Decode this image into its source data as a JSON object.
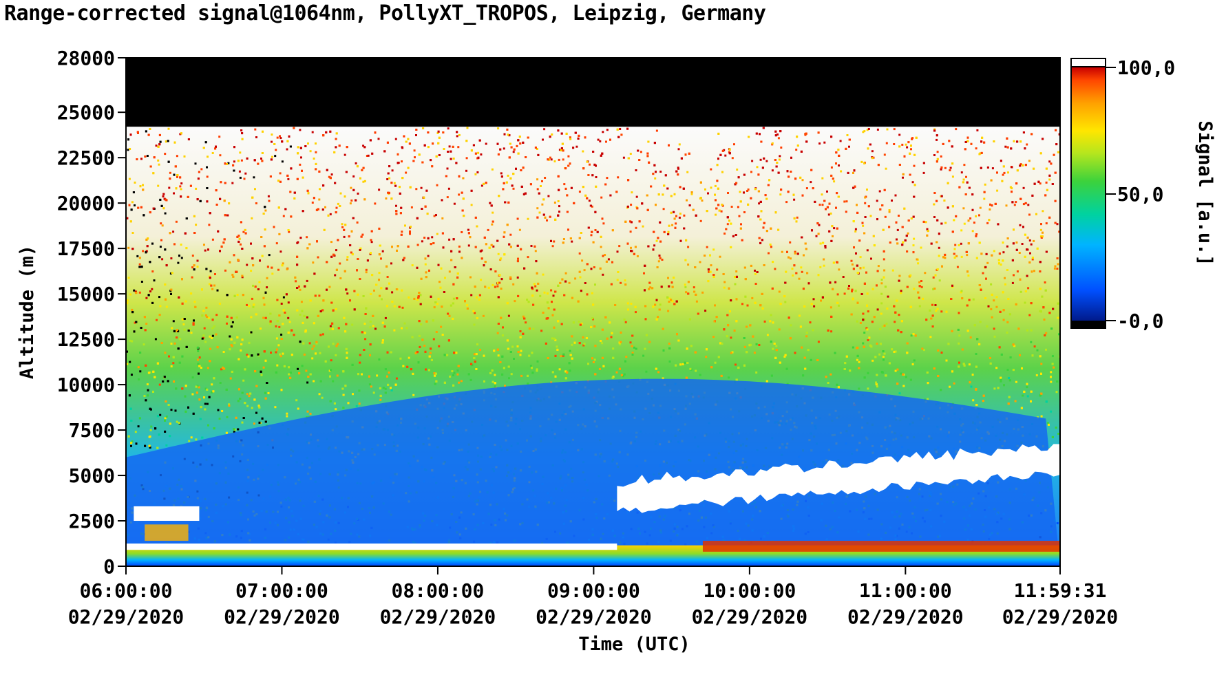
{
  "chart_data": {
    "type": "heatmap",
    "title": "Range-corrected signal@1064nm, PollyXT_TROPOS, Leipzig, Germany",
    "xlabel": "Time (UTC)",
    "ylabel": "Altitude (m)",
    "x_tick_labels": [
      {
        "time": "06:00:00",
        "date": "02/29/2020"
      },
      {
        "time": "07:00:00",
        "date": "02/29/2020"
      },
      {
        "time": "08:00:00",
        "date": "02/29/2020"
      },
      {
        "time": "09:00:00",
        "date": "02/29/2020"
      },
      {
        "time": "10:00:00",
        "date": "02/29/2020"
      },
      {
        "time": "11:00:00",
        "date": "02/29/2020"
      },
      {
        "time": "11:59:31",
        "date": "02/29/2020"
      }
    ],
    "x_tick_hours": [
      6.0,
      7.0,
      8.0,
      9.0,
      10.0,
      11.0,
      11.992
    ],
    "xlim_hours": [
      6.0,
      11.992
    ],
    "y_ticks": [
      0,
      2500,
      5000,
      7500,
      10000,
      12500,
      15000,
      17500,
      20000,
      22500,
      25000,
      28000
    ],
    "ylim": [
      0,
      28000
    ],
    "colorbar": {
      "label": "Signal [a.u.]",
      "ticks": [
        "100,0",
        "50,0",
        "-0,0"
      ],
      "tick_values": [
        100,
        50,
        0
      ],
      "range": [
        0,
        100
      ],
      "colormap": "jet-like (blue to green to yellow to red)",
      "colors": [
        "#001a8c",
        "#0050ff",
        "#00b4ff",
        "#00d2a0",
        "#3cd23c",
        "#b4e61e",
        "#ffe600",
        "#ffa000",
        "#ff4600",
        "#c80000"
      ]
    },
    "features": [
      {
        "name": "no data region",
        "altitude_range": [
          24200,
          28000
        ],
        "color": "#000000"
      },
      {
        "name": "low cloud layer",
        "time_range_hours": [
          9.15,
          11.992
        ],
        "altitude_range_start": [
          3000,
          4500
        ],
        "altitude_range_end": [
          5200,
          6500
        ],
        "color": "#ffffff"
      },
      {
        "name": "early low cloud patch",
        "time_range_hours": [
          6.05,
          6.47
        ],
        "altitude_range": [
          2500,
          3300
        ]
      },
      {
        "name": "boundary layer strong signal",
        "time_range_hours": [
          9.7,
          11.992
        ],
        "altitude_range": [
          800,
          1400
        ],
        "value": 100
      }
    ]
  }
}
